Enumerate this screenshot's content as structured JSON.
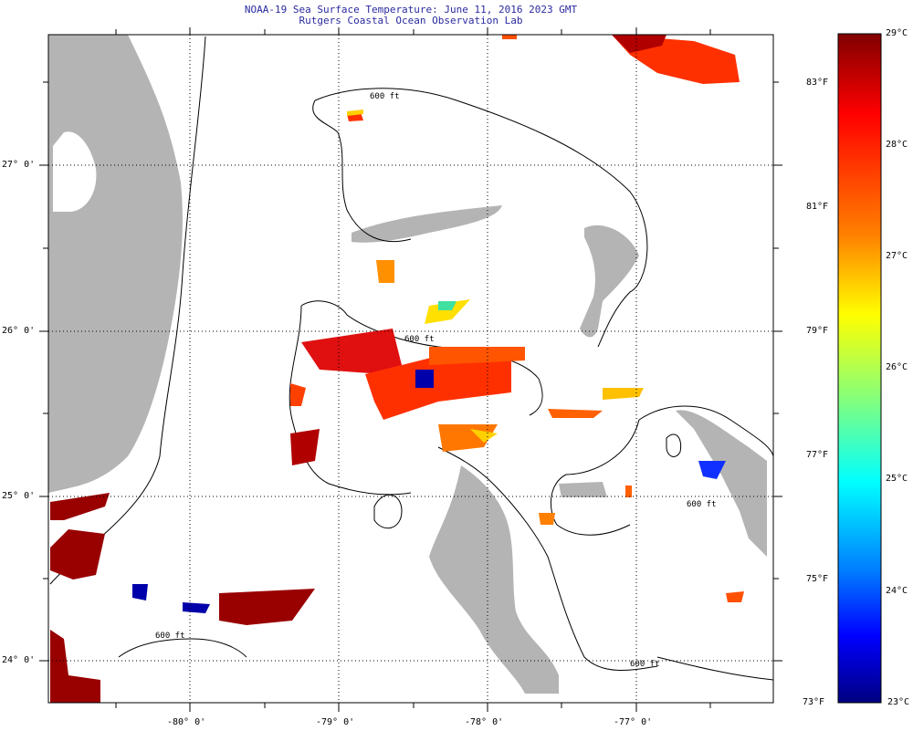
{
  "header": {
    "title": "NOAA-19 Sea Surface Temperature:  June 11, 2016 2023 GMT",
    "subtitle": "Rutgers Coastal Ocean Observation Lab"
  },
  "map": {
    "lon_labels": [
      "-80° 0'",
      "-79° 0'",
      "-78° 0'",
      "-77° 0'"
    ],
    "lat_labels": [
      "27° 0'",
      "26° 0'",
      "25° 0'",
      "24° 0'"
    ],
    "isobath_labels": [
      "600 ft",
      "600 ft",
      "600 ft",
      "600 ft",
      "600 ft"
    ]
  },
  "colorbar": {
    "celsius": [
      "29°C",
      "28°C",
      "27°C",
      "26°C",
      "25°C",
      "24°C",
      "23°C"
    ],
    "fahrenheit": [
      "83°F",
      "81°F",
      "79°F",
      "77°F",
      "75°F",
      "73°F"
    ],
    "colors": [
      "#800000",
      "#ff0000",
      "#ff8000",
      "#ffff00",
      "#80ff80",
      "#00ffff",
      "#0080ff",
      "#0000ff",
      "#000080"
    ]
  },
  "colors": {
    "land": "#b4b4b4",
    "title": "#2a2aa0"
  }
}
